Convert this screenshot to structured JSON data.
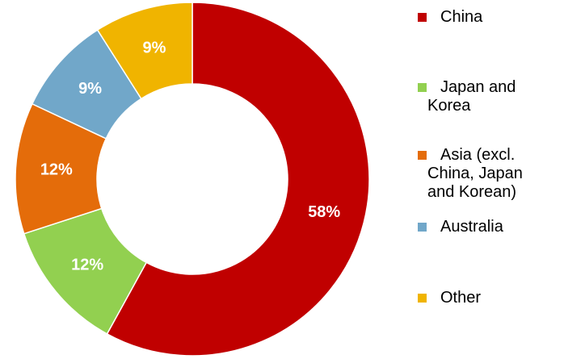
{
  "chart_data": {
    "type": "donut",
    "categories": [
      "China",
      "Japan and Korea",
      "Asia (excl. China, Japan and Korean)",
      "Australia",
      "Other"
    ],
    "values": [
      58,
      12,
      12,
      9,
      9
    ],
    "value_labels": [
      "58%",
      "12%",
      "12%",
      "9%",
      "9%"
    ],
    "colors": [
      "#c00000",
      "#92d050",
      "#e46c0a",
      "#71a7c9",
      "#f0b400"
    ]
  }
}
